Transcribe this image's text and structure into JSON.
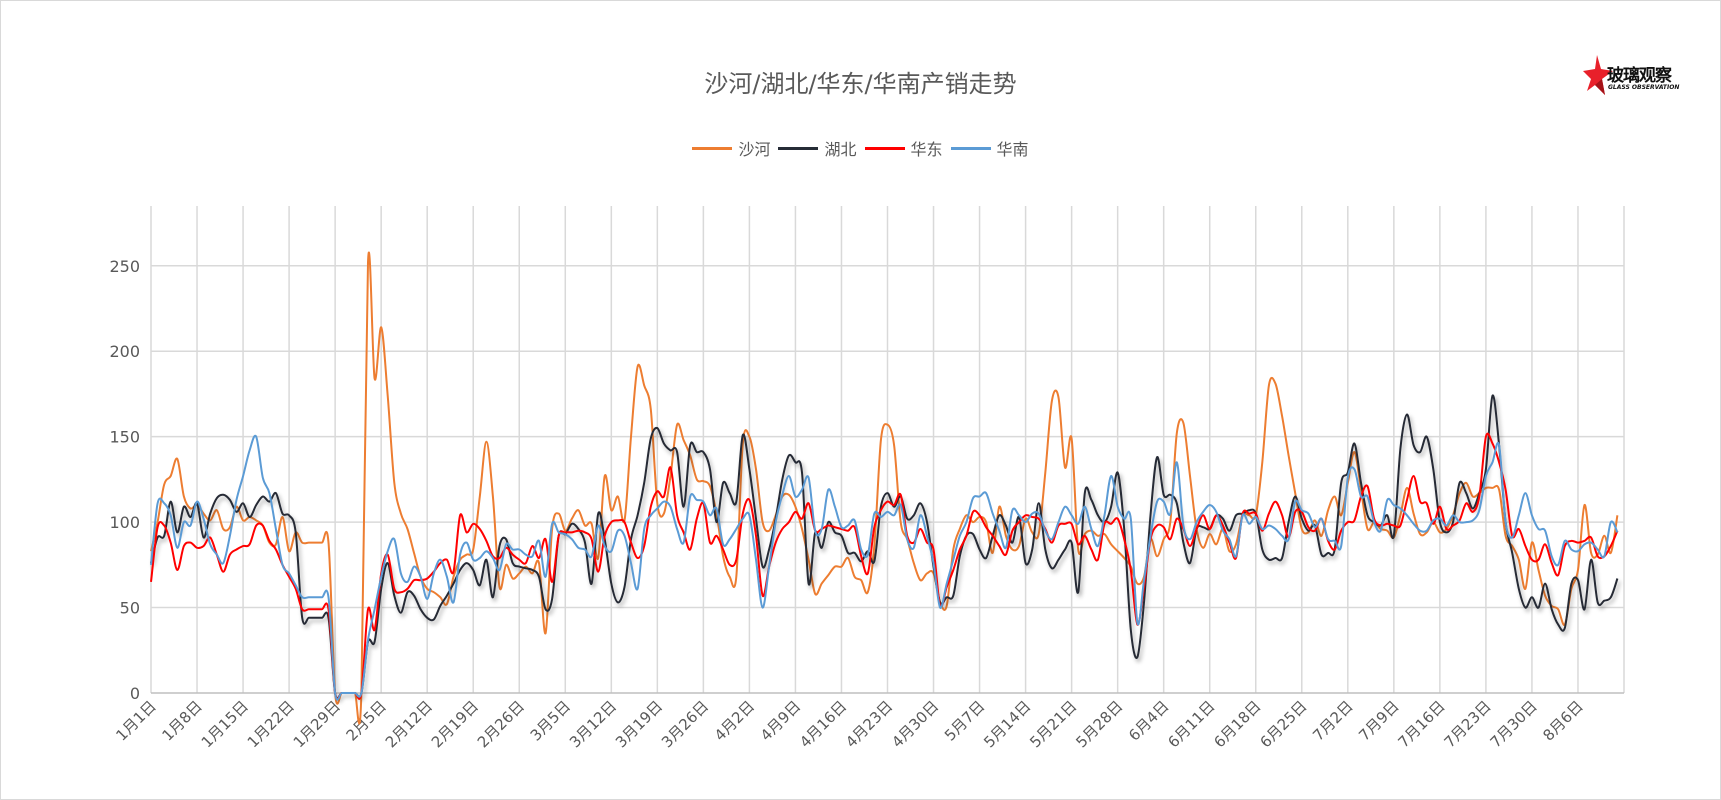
{
  "logo": {
    "text_cn": "玻璃观察",
    "text_en": "GLASS OBSERVATION"
  },
  "chart_data": {
    "type": "line",
    "title": "沙河/湖北/华东/华南产销走势",
    "xlabel": "",
    "ylabel": "",
    "ylim": [
      0,
      285
    ],
    "y_ticks": [
      0,
      50,
      100,
      150,
      200,
      250
    ],
    "grid": true,
    "legend": "top",
    "x_tick_labels": [
      "1月1日",
      "1月8日",
      "1月15日",
      "1月22日",
      "1月29日",
      "2月5日",
      "2月12日",
      "2月19日",
      "2月26日",
      "3月5日",
      "3月12日",
      "3月19日",
      "3月26日",
      "4月2日",
      "4月9日",
      "4月16日",
      "4月23日",
      "4月30日",
      "5月7日",
      "5月14日",
      "5月21日",
      "5月28日",
      "6月4日",
      "6月11日",
      "6月18日",
      "6月25日",
      "7月2日",
      "7月9日",
      "7月16日",
      "7月23日",
      "7月30日",
      "8月6日"
    ],
    "categories": [
      "1月1日",
      "1月2日",
      "1月3日",
      "1月4日",
      "1月5日",
      "1月6日",
      "1月7日",
      "1月8日",
      "1月9日",
      "1月10日",
      "1月11日",
      "1月12日",
      "1月13日",
      "1月14日",
      "1月15日",
      "1月16日",
      "1月17日",
      "1月18日",
      "1月19日",
      "1月20日",
      "1月21日",
      "1月22日",
      "1月23日",
      "1月24日",
      "1月25日",
      "1月26日",
      "1月27日",
      "1月28日",
      "1月29日",
      "1月30日",
      "1月31日",
      "2月1日",
      "2月2日",
      "2月3日",
      "2月4日",
      "2月5日",
      "2月6日",
      "2月7日",
      "2月8日",
      "2月9日",
      "2月10日",
      "2月11日",
      "2月12日",
      "2月13日",
      "2月14日",
      "2月15日",
      "2月16日",
      "2月17日",
      "2月18日",
      "2月19日",
      "2月20日",
      "2月21日",
      "2月22日",
      "2月23日",
      "2月24日",
      "2月25日",
      "2月26日",
      "2月27日",
      "2月28日",
      "3月1日",
      "3月2日",
      "3月3日",
      "3月4日",
      "3月5日",
      "3月6日",
      "3月7日",
      "3月8日",
      "3月9日",
      "3月10日",
      "3月11日",
      "3月12日",
      "3月13日",
      "3月14日",
      "3月15日",
      "3月16日",
      "3月17日",
      "3月18日",
      "3月19日",
      "3月20日",
      "3月21日",
      "3月22日",
      "3月23日",
      "3月24日",
      "3月25日",
      "3月26日",
      "3月27日",
      "3月28日",
      "3月29日",
      "3月30日",
      "3月31日",
      "4月1日",
      "4月2日",
      "4月3日",
      "4月4日",
      "4月5日",
      "4月6日",
      "4月7日",
      "4月8日",
      "4月9日",
      "4月10日",
      "4月11日",
      "4月12日",
      "4月13日",
      "4月14日",
      "4月15日",
      "4月16日",
      "4月17日",
      "4月18日",
      "4月19日",
      "4月20日",
      "4月21日",
      "4月22日",
      "4月23日",
      "4月24日",
      "4月25日",
      "4月26日",
      "4月27日",
      "4月28日",
      "4月29日",
      "4月30日",
      "5月1日",
      "5月2日",
      "5月3日",
      "5月4日",
      "5月5日",
      "5月6日",
      "5月7日",
      "5月8日",
      "5月9日",
      "5月10日",
      "5月11日",
      "5月12日",
      "5月13日",
      "5月14日",
      "5月15日",
      "5月16日",
      "5月17日",
      "5月18日",
      "5月19日",
      "5月20日",
      "5月21日",
      "5月22日",
      "5月23日",
      "5月24日",
      "5月25日",
      "5月26日",
      "5月27日",
      "5月28日",
      "5月29日",
      "5月30日",
      "5月31日",
      "6月1日",
      "6月2日",
      "6月3日",
      "6月4日",
      "6月5日",
      "6月6日",
      "6月7日",
      "6月8日",
      "6月9日",
      "6月10日",
      "6月11日",
      "6月12日",
      "6月13日",
      "6月14日",
      "6月15日",
      "6月16日",
      "6月17日",
      "6月18日",
      "6月19日",
      "6月20日",
      "6月21日",
      "6月22日",
      "6月23日",
      "6月24日",
      "6月25日",
      "6月26日",
      "6月27日",
      "6月28日",
      "6月29日",
      "6月30日",
      "7月1日",
      "7月2日",
      "7月3日",
      "7月4日",
      "7月5日",
      "7月6日",
      "7月7日",
      "7月8日",
      "7月9日",
      "7月10日",
      "7月11日",
      "7月12日",
      "7月13日",
      "7月14日",
      "7月15日",
      "7月16日",
      "7月17日",
      "7月18日",
      "7月19日",
      "7月20日",
      "7月21日",
      "7月22日",
      "7月23日",
      "7月24日",
      "7月25日",
      "7月26日",
      "7月27日",
      "7月28日",
      "7月29日",
      "7月30日",
      "7月31日",
      "8月1日",
      "8月2日",
      "8月3日",
      "8月4日",
      "8月5日",
      "8月6日",
      "8月7日",
      "8月8日",
      "8月9日",
      "8月10日",
      "8月11日",
      "8月12日"
    ],
    "series": [
      {
        "name": "沙河",
        "color": "#ED7D31",
        "values": [
          83,
          100,
          122,
          127,
          137,
          115,
          108,
          110,
          105,
          101,
          107,
          96,
          97,
          109,
          101,
          103,
          101,
          98,
          88,
          87,
          103,
          83,
          94,
          88,
          88,
          88,
          88,
          88,
          0,
          0,
          0,
          0,
          0,
          252,
          184,
          214,
          174,
          123,
          105,
          96,
          82,
          68,
          61,
          59,
          56,
          52,
          68,
          78,
          81,
          84,
          115,
          147,
          115,
          62,
          75,
          67,
          70,
          74,
          70,
          76,
          35,
          96,
          105,
          95,
          102,
          107,
          98,
          99,
          79,
          127,
          107,
          115,
          101,
          150,
          191,
          180,
          166,
          111,
          105,
          127,
          157,
          148,
          139,
          125,
          124,
          121,
          105,
          80,
          68,
          68,
          146,
          150,
          131,
          100,
          95,
          104,
          115,
          116,
          109,
          96,
          78,
          58,
          64,
          69,
          74,
          74,
          79,
          68,
          66,
          59,
          86,
          148,
          157,
          145,
          100,
          90,
          76,
          66,
          70,
          70,
          53,
          51,
          84,
          96,
          104,
          100,
          103,
          100,
          82,
          109,
          92,
          84,
          86,
          102,
          94,
          93,
          129,
          171,
          173,
          132,
          149,
          84,
          93,
          95,
          92,
          93,
          87,
          83,
          79,
          74,
          64,
          68,
          90,
          80,
          90,
          100,
          152,
          158,
          127,
          96,
          85,
          93,
          87,
          96,
          83,
          87,
          104,
          104,
          104,
          135,
          180,
          181,
          162,
          139,
          117,
          96,
          94,
          101,
          92,
          107,
          115,
          104,
          123,
          141,
          119,
          96,
          100,
          96,
          95,
          91,
          104,
          120,
          105,
          93,
          94,
          100,
          94,
          96,
          104,
          117,
          123,
          115,
          117,
          120,
          120,
          119,
          92,
          86,
          78,
          61,
          88,
          72,
          57,
          51,
          49,
          40,
          61,
          72,
          110,
          82,
          81,
          92,
          82,
          104
        ]
      },
      {
        "name": "湖北",
        "color": "#262C36",
        "values": [
          76,
          91,
          92,
          112,
          94,
          109,
          103,
          111,
          91,
          105,
          114,
          116,
          113,
          106,
          111,
          103,
          110,
          115,
          112,
          117,
          105,
          104,
          94,
          44,
          44,
          44,
          44,
          44,
          0,
          0,
          0,
          0,
          0,
          30,
          30,
          61,
          76,
          57,
          47,
          59,
          57,
          49,
          44,
          43,
          51,
          57,
          64,
          72,
          76,
          72,
          63,
          78,
          56,
          86,
          90,
          76,
          74,
          73,
          72,
          68,
          49,
          55,
          92,
          93,
          99,
          96,
          88,
          64,
          105,
          90,
          64,
          53,
          62,
          90,
          104,
          123,
          149,
          155,
          146,
          142,
          141,
          109,
          145,
          141,
          141,
          131,
          100,
          123,
          117,
          112,
          151,
          131,
          102,
          74,
          84,
          102,
          125,
          139,
          135,
          129,
          64,
          94,
          85,
          100,
          94,
          92,
          82,
          82,
          77,
          83,
          77,
          109,
          117,
          109,
          115,
          102,
          104,
          111,
          100,
          74,
          53,
          56,
          57,
          80,
          92,
          93,
          84,
          79,
          92,
          104,
          98,
          88,
          103,
          76,
          84,
          111,
          84,
          73,
          78,
          84,
          88,
          59,
          117,
          113,
          104,
          100,
          109,
          129,
          96,
          37,
          21,
          53,
          104,
          138,
          116,
          116,
          111,
          88,
          76,
          96,
          97,
          96,
          104,
          102,
          95,
          104,
          105,
          107,
          105,
          84,
          78,
          79,
          79,
          100,
          115,
          102,
          95,
          98,
          81,
          82,
          84,
          123,
          129,
          146,
          123,
          104,
          100,
          98,
          104,
          92,
          143,
          163,
          145,
          141,
          150,
          131,
          100,
          94,
          100,
          123,
          117,
          108,
          117,
          131,
          174,
          145,
          100,
          82,
          61,
          50,
          56,
          50,
          64,
          49,
          40,
          38,
          64,
          66,
          49,
          78,
          53,
          54,
          56,
          67
        ]
      },
      {
        "name": "华东",
        "color": "#FF0000",
        "values": [
          65,
          97,
          98,
          88,
          72,
          86,
          88,
          85,
          86,
          91,
          81,
          71,
          81,
          84,
          86,
          87,
          98,
          98,
          89,
          84,
          75,
          68,
          61,
          49,
          49,
          49,
          49,
          49,
          0,
          0,
          0,
          0,
          0,
          49,
          37,
          70,
          81,
          61,
          59,
          61,
          66,
          66,
          67,
          71,
          76,
          78,
          71,
          104,
          94,
          99,
          96,
          89,
          80,
          79,
          85,
          81,
          78,
          76,
          86,
          79,
          90,
          65,
          92,
          94,
          94,
          95,
          94,
          90,
          71,
          92,
          100,
          101,
          100,
          88,
          79,
          86,
          109,
          118,
          115,
          132,
          104,
          94,
          84,
          102,
          111,
          88,
          92,
          84,
          75,
          78,
          105,
          113,
          92,
          57,
          74,
          88,
          96,
          100,
          106,
          102,
          111,
          95,
          96,
          98,
          97,
          96,
          95,
          97,
          80,
          70,
          97,
          107,
          112,
          110,
          116,
          92,
          88,
          96,
          88,
          84,
          51,
          62,
          72,
          84,
          92,
          106,
          104,
          97,
          92,
          86,
          81,
          95,
          100,
          104,
          103,
          102,
          96,
          88,
          98,
          99,
          99,
          87,
          92,
          84,
          78,
          99,
          99,
          102,
          90,
          72,
          40,
          62,
          90,
          98,
          97,
          90,
          102,
          96,
          86,
          96,
          104,
          96,
          104,
          98,
          88,
          79,
          105,
          105,
          105,
          95,
          105,
          112,
          104,
          91,
          106,
          106,
          97,
          95,
          102,
          89,
          84,
          95,
          100,
          101,
          115,
          121,
          102,
          98,
          99,
          98,
          98,
          113,
          127,
          112,
          111,
          99,
          109,
          96,
          98,
          101,
          111,
          106,
          115,
          150,
          146,
          135,
          119,
          92,
          96,
          86,
          78,
          78,
          87,
          76,
          69,
          86,
          89,
          88,
          89,
          91,
          80,
          80,
          86,
          95
        ]
      },
      {
        "name": "华南",
        "color": "#5B9BD5",
        "values": [
          75,
          111,
          111,
          104,
          85,
          100,
          98,
          112,
          102,
          87,
          81,
          76,
          92,
          113,
          127,
          142,
          150,
          126,
          117,
          96,
          75,
          70,
          63,
          56,
          56,
          56,
          56,
          56,
          0,
          0,
          0,
          0,
          0,
          31,
          49,
          68,
          83,
          90,
          70,
          65,
          74,
          68,
          55,
          70,
          78,
          68,
          53,
          81,
          88,
          78,
          79,
          83,
          79,
          72,
          87,
          84,
          84,
          81,
          80,
          89,
          68,
          99,
          94,
          93,
          90,
          85,
          84,
          80,
          98,
          86,
          83,
          95,
          92,
          76,
          61,
          96,
          104,
          108,
          112,
          109,
          96,
          88,
          115,
          113,
          112,
          104,
          108,
          87,
          90,
          96,
          102,
          104,
          78,
          50,
          74,
          100,
          116,
          127,
          115,
          119,
          126,
          95,
          96,
          119,
          109,
          97,
          98,
          101,
          84,
          81,
          105,
          103,
          106,
          104,
          110,
          90,
          85,
          104,
          92,
          76,
          50,
          64,
          78,
          92,
          100,
          114,
          115,
          117,
          105,
          95,
          85,
          107,
          104,
          100,
          105,
          105,
          95,
          90,
          100,
          109,
          104,
          99,
          109,
          96,
          86,
          104,
          127,
          109,
          102,
          102,
          41,
          66,
          92,
          112,
          112,
          105,
          135,
          98,
          90,
          100,
          106,
          110,
          106,
          95,
          90,
          80,
          104,
          99,
          103,
          96,
          98,
          96,
          92,
          90,
          112,
          107,
          105,
          97,
          102,
          90,
          89,
          86,
          126,
          131,
          115,
          115,
          100,
          95,
          113,
          110,
          108,
          104,
          99,
          95,
          95,
          101,
          102,
          98,
          104,
          100,
          100,
          101,
          107,
          127,
          135,
          145,
          100,
          91,
          104,
          117,
          104,
          96,
          95,
          80,
          75,
          89,
          84,
          83,
          87,
          88,
          84,
          80,
          100,
          94
        ]
      }
    ]
  }
}
